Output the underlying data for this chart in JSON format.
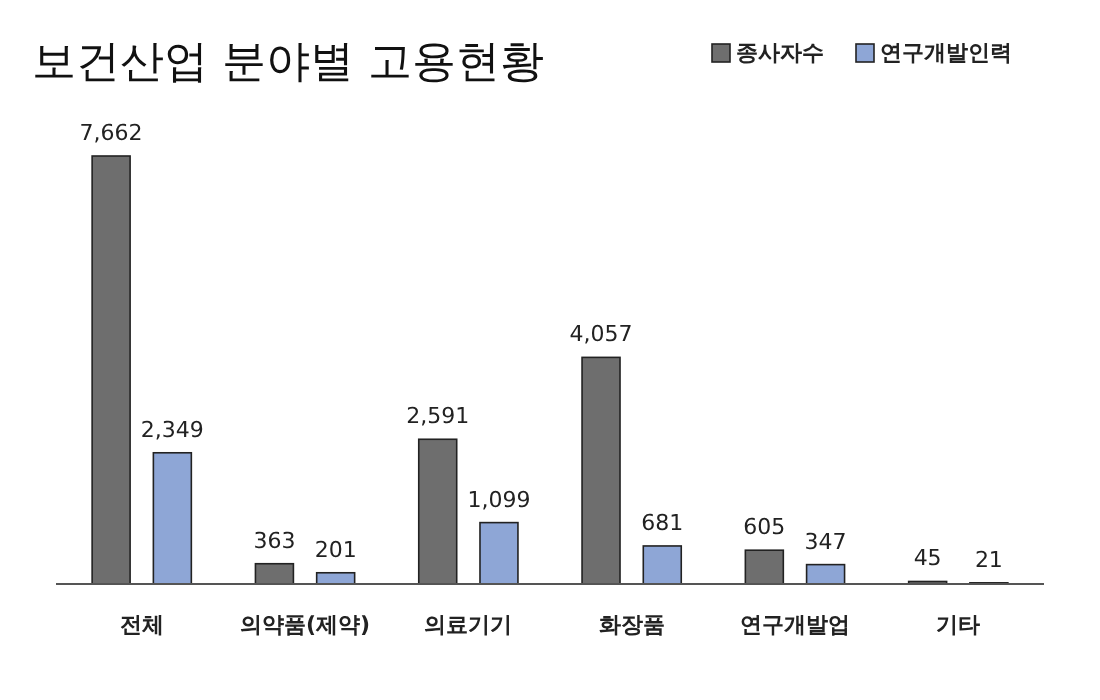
{
  "chart_data": {
    "type": "bar",
    "title": "보건산업 분야별 고용현황",
    "categories": [
      "전체",
      "의약품(제약)",
      "의료기기",
      "화장품",
      "연구개발업",
      "기타"
    ],
    "series": [
      {
        "name": "종사자수",
        "color": "#6e6e6e",
        "values": [
          7662,
          363,
          2591,
          4057,
          605,
          45
        ],
        "value_labels": [
          "7,662",
          "363",
          "2,591",
          "4,057",
          "605",
          "45"
        ]
      },
      {
        "name": "연구개발인력",
        "color": "#8ea6d6",
        "values": [
          2349,
          201,
          1099,
          681,
          347,
          21
        ],
        "value_labels": [
          "2,349",
          "201",
          "1,099",
          "681",
          "347",
          "21"
        ]
      }
    ],
    "legend": "top right"
  }
}
